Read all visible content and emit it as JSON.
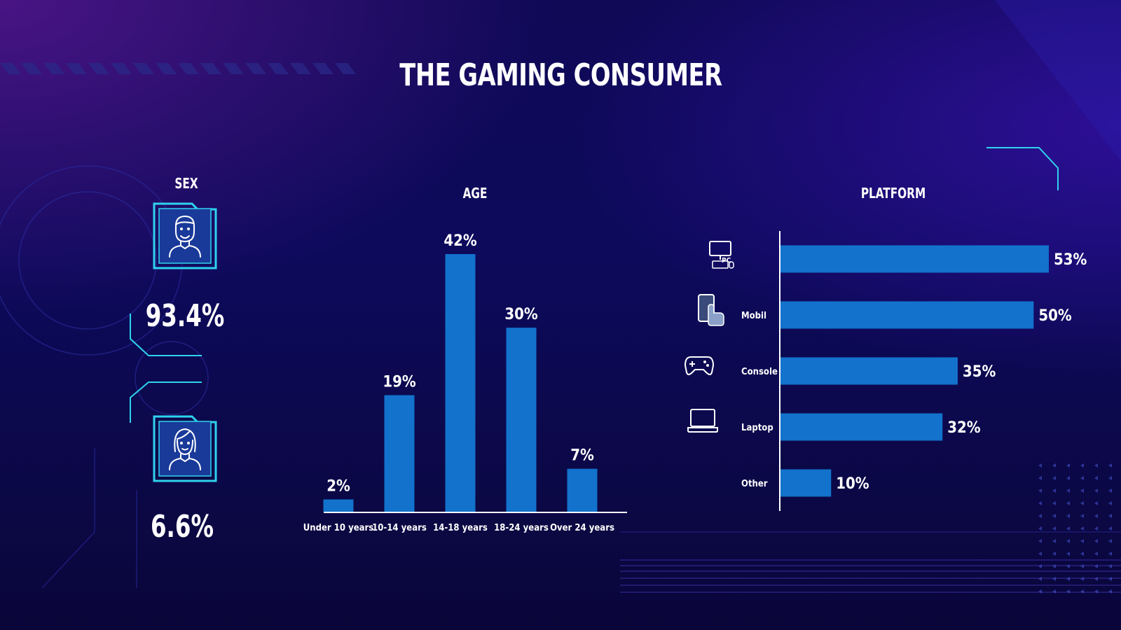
{
  "title": "THE GAMING CONSUMER",
  "sex": {
    "heading": "SEX",
    "male": {
      "icon": "male-avatar-icon",
      "percent": "93.4%"
    },
    "female": {
      "icon": "female-avatar-icon",
      "percent": "6.6%"
    }
  },
  "colors": {
    "bar": "#1272cc",
    "accent": "#2fd2ee",
    "background": "#0d0a5c"
  },
  "chart_data": [
    {
      "type": "bar",
      "title": "AGE",
      "categories": [
        "Under 10 years",
        "10-14 years",
        "14-18 years",
        "18-24 years",
        "Over 24 years"
      ],
      "values": [
        2,
        19,
        42,
        30,
        7
      ],
      "value_labels": [
        "2%",
        "19%",
        "42%",
        "30%",
        "7%"
      ],
      "ylim": [
        0,
        42
      ]
    },
    {
      "type": "bar",
      "orientation": "horizontal",
      "title": "PLATFORM",
      "categories": [
        "PC",
        "Mobil",
        "Console",
        "Laptop",
        "Other"
      ],
      "icons": [
        "desktop-pc-icon",
        "mobile-touch-icon",
        "gamepad-icon",
        "laptop-icon",
        ""
      ],
      "values": [
        53,
        50,
        35,
        32,
        10
      ],
      "value_labels": [
        "53%",
        "50%",
        "35%",
        "32%",
        "10%"
      ],
      "xlim": [
        0,
        53
      ]
    }
  ]
}
